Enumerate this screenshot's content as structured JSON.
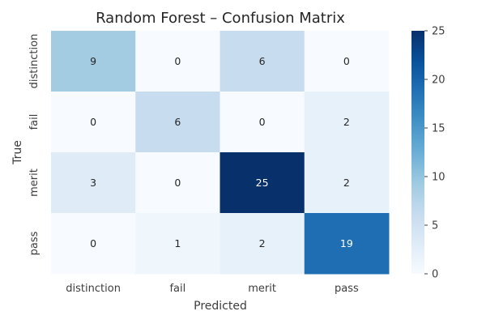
{
  "chart_data": {
    "type": "heatmap",
    "title": "Random Forest – Confusion Matrix",
    "xlabel": "Predicted",
    "ylabel": "True",
    "x_categories": [
      "distinction",
      "fail",
      "merit",
      "pass"
    ],
    "y_categories": [
      "distinction",
      "fail",
      "merit",
      "pass"
    ],
    "values": [
      [
        9,
        0,
        6,
        0
      ],
      [
        0,
        6,
        0,
        2
      ],
      [
        3,
        0,
        25,
        2
      ],
      [
        0,
        1,
        2,
        19
      ]
    ],
    "colormap": "Blues",
    "colorbar": {
      "range": [
        0,
        25
      ],
      "ticks": [
        0,
        5,
        10,
        15,
        20,
        25
      ]
    },
    "legend": "colorbar-right",
    "grid": false
  }
}
